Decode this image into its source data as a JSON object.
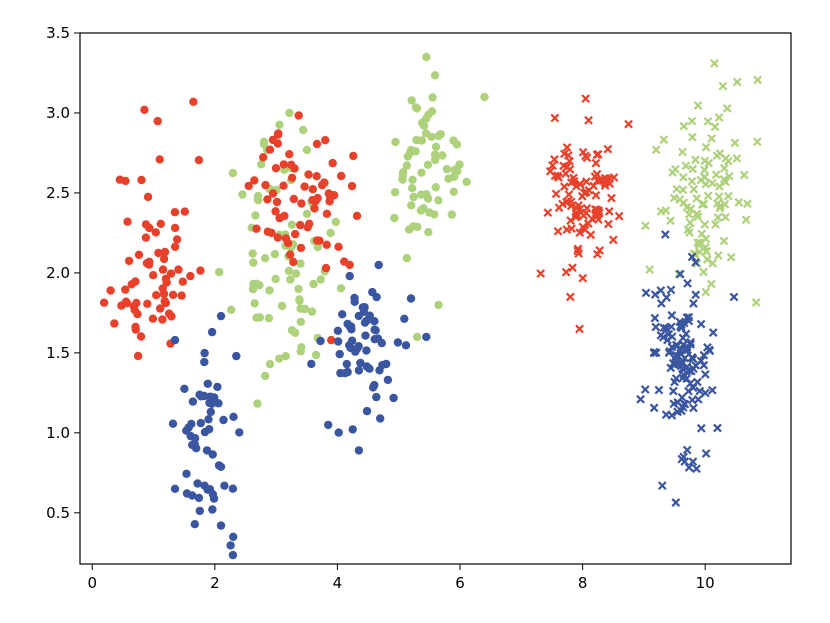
{
  "chart_data": {
    "type": "scatter",
    "xlim": [
      -0.2,
      11.4
    ],
    "ylim": [
      0.18,
      3.5
    ],
    "xticks": [
      0,
      2,
      4,
      6,
      8,
      10
    ],
    "yticks": [
      0.5,
      1.0,
      1.5,
      2.0,
      2.5,
      3.0,
      3.5
    ],
    "xtick_labels": [
      "0",
      "2",
      "4",
      "6",
      "8",
      "10"
    ],
    "ytick_labels": [
      "0.5",
      "1.0",
      "1.5",
      "2.0",
      "2.5",
      "3.0",
      "3.5"
    ],
    "grid": false,
    "colors": {
      "red": "#e8412b",
      "green": "#aed17b",
      "blue": "#3b56a0"
    },
    "clusters": [
      {
        "color": "red",
        "marker": "circle",
        "cx": 1.0,
        "cy": 2.05,
        "sx": 0.32,
        "sy": 0.33,
        "n": 62,
        "seed": 11,
        "extra": [
          [
            0.85,
            3.02
          ],
          [
            1.65,
            3.07
          ],
          [
            0.55,
            1.82
          ],
          [
            0.3,
            1.89
          ],
          [
            1.1,
            2.71
          ],
          [
            1.6,
            1.98
          ]
        ]
      },
      {
        "color": "green",
        "marker": "circle",
        "cx": 3.1,
        "cy": 2.1,
        "sx": 0.38,
        "sy": 0.36,
        "n": 75,
        "seed": 23,
        "extra": [
          [
            2.45,
            2.49
          ],
          [
            2.9,
            1.43
          ],
          [
            3.4,
            1.51
          ],
          [
            2.8,
            2.82
          ]
        ]
      },
      {
        "color": "red",
        "marker": "circle",
        "cx": 3.45,
        "cy": 2.45,
        "sx": 0.38,
        "sy": 0.22,
        "n": 65,
        "seed": 37,
        "extra": [
          [
            4.2,
            2.05
          ],
          [
            3.9,
            1.58
          ],
          [
            3.8,
            2.83
          ]
        ]
      },
      {
        "color": "blue",
        "marker": "circle",
        "cx": 1.95,
        "cy": 0.95,
        "sx": 0.27,
        "sy": 0.28,
        "n": 55,
        "seed": 41,
        "extra": [
          [
            2.1,
            1.73
          ],
          [
            2.35,
            1.48
          ],
          [
            2.1,
            0.42
          ],
          [
            2.3,
            0.35
          ],
          [
            1.35,
            1.58
          ],
          [
            1.35,
            0.65
          ]
        ]
      },
      {
        "color": "blue",
        "marker": "circle",
        "cx": 4.45,
        "cy": 1.55,
        "sx": 0.33,
        "sy": 0.23,
        "n": 60,
        "seed": 53,
        "extra": [
          [
            4.35,
            0.89
          ],
          [
            3.85,
            1.05
          ],
          [
            5.45,
            1.6
          ],
          [
            5.2,
            1.84
          ],
          [
            4.2,
            1.98
          ]
        ]
      },
      {
        "color": "green",
        "marker": "circle",
        "cx": 5.45,
        "cy": 2.6,
        "sx": 0.3,
        "sy": 0.25,
        "n": 62,
        "seed": 67,
        "extra": [
          [
            5.45,
            3.35
          ],
          [
            6.4,
            3.1
          ],
          [
            5.65,
            1.8
          ],
          [
            5.3,
            1.6
          ]
        ]
      },
      {
        "color": "red",
        "marker": "x",
        "cx": 8.0,
        "cy": 2.45,
        "sx": 0.32,
        "sy": 0.22,
        "n": 100,
        "seed": 71,
        "extra": [
          [
            8.05,
            3.09
          ],
          [
            7.95,
            1.65
          ],
          [
            7.8,
            1.85
          ],
          [
            8.75,
            2.93
          ]
        ]
      },
      {
        "color": "green",
        "marker": "x",
        "cx": 10.0,
        "cy": 2.45,
        "sx": 0.35,
        "sy": 0.3,
        "n": 100,
        "seed": 83,
        "extra": [
          [
            10.15,
            3.31
          ],
          [
            10.85,
            2.82
          ],
          [
            9.2,
            2.77
          ],
          [
            10.1,
            1.93
          ]
        ]
      },
      {
        "color": "blue",
        "marker": "x",
        "cx": 9.55,
        "cy": 1.45,
        "sx": 0.3,
        "sy": 0.3,
        "n": 120,
        "seed": 97,
        "extra": [
          [
            9.3,
            0.67
          ],
          [
            9.35,
            2.24
          ],
          [
            10.2,
            1.03
          ],
          [
            9.8,
            0.82
          ]
        ]
      }
    ]
  }
}
